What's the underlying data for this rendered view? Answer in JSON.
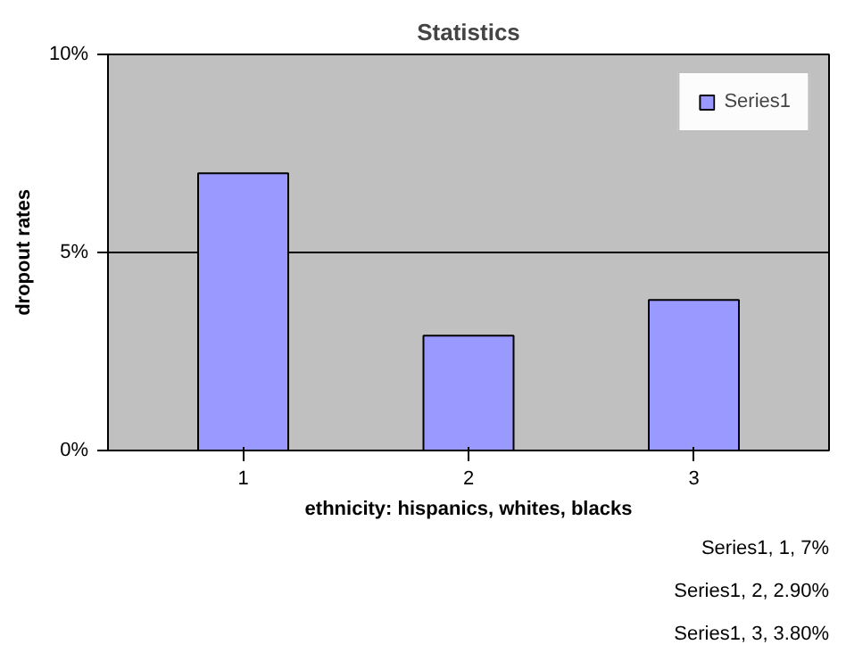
{
  "chart_data": {
    "type": "bar",
    "title": "Statistics",
    "xlabel": "ethnicity: hispanics, whites, blacks",
    "ylabel": "dropout rates",
    "categories": [
      "1",
      "2",
      "3"
    ],
    "series": [
      {
        "name": "Series1",
        "color": "#9999ff",
        "values": [
          7,
          2.9,
          3.8
        ]
      }
    ],
    "ylim": [
      0,
      10
    ],
    "yticks": [
      {
        "value": 0,
        "label": "0%"
      },
      {
        "value": 5,
        "label": "5%"
      },
      {
        "value": 10,
        "label": "10%"
      }
    ],
    "grid": "y",
    "legend": "top right",
    "annotations": [
      "Series1, 1, 7%",
      "Series1, 2, 2.90%",
      "Series1, 3, 3.80%"
    ]
  }
}
